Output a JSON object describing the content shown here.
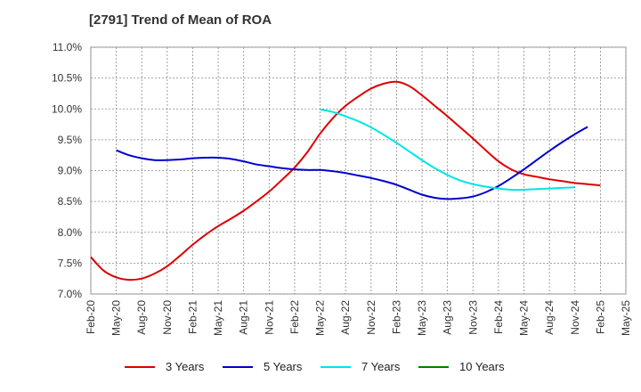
{
  "chart_data": {
    "type": "line",
    "title": "[2791]  Trend of Mean of ROA",
    "xlabel": "",
    "ylabel": "",
    "x_ticks": [
      "Feb-20",
      "May-20",
      "Aug-20",
      "Nov-20",
      "Feb-21",
      "May-21",
      "Aug-21",
      "Nov-21",
      "Feb-22",
      "May-22",
      "Aug-22",
      "Nov-22",
      "Feb-23",
      "May-23",
      "Aug-23",
      "Nov-23",
      "Feb-24",
      "May-24",
      "Aug-24",
      "Nov-24",
      "Feb-25",
      "May-25"
    ],
    "y_ticks": [
      "7.0%",
      "7.5%",
      "8.0%",
      "8.5%",
      "9.0%",
      "9.5%",
      "10.0%",
      "10.5%",
      "11.0%"
    ],
    "ylim": [
      7.0,
      11.0
    ],
    "grid": true,
    "legend_position": "bottom",
    "series": [
      {
        "name": "3 Years",
        "color": "#dd0000",
        "points": [
          [
            0,
            7.6
          ],
          [
            0.5,
            7.38
          ],
          [
            1,
            7.27
          ],
          [
            1.5,
            7.23
          ],
          [
            2,
            7.25
          ],
          [
            2.5,
            7.33
          ],
          [
            3,
            7.45
          ],
          [
            3.5,
            7.62
          ],
          [
            4,
            7.8
          ],
          [
            4.5,
            7.96
          ],
          [
            5,
            8.1
          ],
          [
            5.5,
            8.22
          ],
          [
            6,
            8.35
          ],
          [
            6.5,
            8.5
          ],
          [
            7,
            8.66
          ],
          [
            7.5,
            8.85
          ],
          [
            8,
            9.05
          ],
          [
            8.5,
            9.3
          ],
          [
            9,
            9.6
          ],
          [
            9.5,
            9.85
          ],
          [
            10,
            10.05
          ],
          [
            10.5,
            10.2
          ],
          [
            11,
            10.33
          ],
          [
            11.5,
            10.41
          ],
          [
            12,
            10.44
          ],
          [
            12.5,
            10.37
          ],
          [
            13,
            10.22
          ],
          [
            13.5,
            10.05
          ],
          [
            14,
            9.88
          ],
          [
            14.5,
            9.7
          ],
          [
            15,
            9.52
          ],
          [
            15.5,
            9.33
          ],
          [
            16,
            9.15
          ],
          [
            16.5,
            9.02
          ],
          [
            17,
            8.94
          ],
          [
            17.5,
            8.9
          ],
          [
            18,
            8.86
          ],
          [
            18.5,
            8.83
          ],
          [
            19,
            8.8
          ],
          [
            19.5,
            8.78
          ],
          [
            20,
            8.76
          ]
        ]
      },
      {
        "name": "5 Years",
        "color": "#0000cc",
        "points": [
          [
            1,
            9.33
          ],
          [
            1.5,
            9.25
          ],
          [
            2,
            9.2
          ],
          [
            2.5,
            9.17
          ],
          [
            3,
            9.17
          ],
          [
            3.5,
            9.18
          ],
          [
            4,
            9.2
          ],
          [
            4.5,
            9.21
          ],
          [
            5,
            9.21
          ],
          [
            5.5,
            9.19
          ],
          [
            6,
            9.15
          ],
          [
            6.5,
            9.1
          ],
          [
            7,
            9.07
          ],
          [
            7.5,
            9.04
          ],
          [
            8,
            9.02
          ],
          [
            8.5,
            9.01
          ],
          [
            9,
            9.01
          ],
          [
            9.5,
            8.99
          ],
          [
            10,
            8.96
          ],
          [
            10.5,
            8.92
          ],
          [
            11,
            8.88
          ],
          [
            11.5,
            8.83
          ],
          [
            12,
            8.77
          ],
          [
            12.5,
            8.69
          ],
          [
            13,
            8.61
          ],
          [
            13.5,
            8.56
          ],
          [
            14,
            8.54
          ],
          [
            14.5,
            8.55
          ],
          [
            15,
            8.58
          ],
          [
            15.5,
            8.65
          ],
          [
            16,
            8.75
          ],
          [
            16.5,
            8.88
          ],
          [
            17,
            9.02
          ],
          [
            17.5,
            9.17
          ],
          [
            18,
            9.32
          ],
          [
            18.5,
            9.46
          ],
          [
            19,
            9.59
          ],
          [
            19.5,
            9.71
          ]
        ]
      },
      {
        "name": "7 Years",
        "color": "#00e5e5",
        "points": [
          [
            9,
            9.99
          ],
          [
            9.5,
            9.95
          ],
          [
            10,
            9.88
          ],
          [
            10.5,
            9.8
          ],
          [
            11,
            9.7
          ],
          [
            11.5,
            9.58
          ],
          [
            12,
            9.45
          ],
          [
            12.5,
            9.31
          ],
          [
            13,
            9.17
          ],
          [
            13.5,
            9.04
          ],
          [
            14,
            8.93
          ],
          [
            14.5,
            8.84
          ],
          [
            15,
            8.78
          ],
          [
            15.5,
            8.74
          ],
          [
            16,
            8.71
          ],
          [
            16.5,
            8.69
          ],
          [
            17,
            8.69
          ],
          [
            17.5,
            8.7
          ],
          [
            18,
            8.71
          ],
          [
            18.5,
            8.72
          ],
          [
            19,
            8.73
          ]
        ]
      },
      {
        "name": "10 Years",
        "color": "#008000",
        "points": []
      }
    ]
  }
}
